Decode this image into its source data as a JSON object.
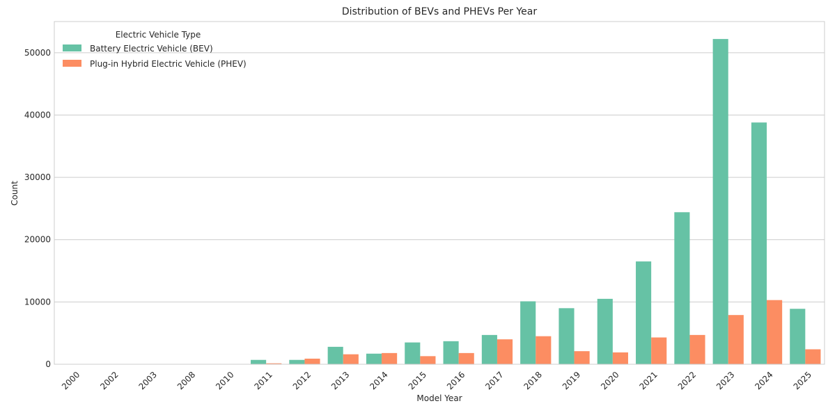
{
  "chart_data": {
    "type": "bar",
    "title": "Distribution of BEVs and PHEVs Per Year",
    "xlabel": "Model Year",
    "ylabel": "Count",
    "ylim": [
      0,
      55000
    ],
    "yticks": [
      0,
      10000,
      20000,
      30000,
      40000,
      50000
    ],
    "grid": true,
    "legend": {
      "title": "Electric Vehicle Type",
      "placement": "top-left"
    },
    "categories": [
      "2000",
      "2002",
      "2003",
      "2008",
      "2010",
      "2011",
      "2012",
      "2013",
      "2014",
      "2015",
      "2016",
      "2017",
      "2018",
      "2019",
      "2020",
      "2021",
      "2022",
      "2023",
      "2024",
      "2025"
    ],
    "series": [
      {
        "name": "Battery Electric Vehicle (BEV)",
        "color": "#66c2a5",
        "values": [
          10,
          10,
          10,
          10,
          10,
          700,
          700,
          2800,
          1700,
          3500,
          3700,
          4700,
          10100,
          9000,
          10500,
          16500,
          24400,
          52200,
          38800,
          8900
        ]
      },
      {
        "name": "Plug-in Hybrid Electric Vehicle (PHEV)",
        "color": "#fc8d62",
        "values": [
          0,
          0,
          0,
          0,
          0,
          150,
          900,
          1600,
          1800,
          1300,
          1800,
          4000,
          4500,
          2100,
          1900,
          4300,
          4700,
          7900,
          10300,
          2400
        ]
      }
    ]
  }
}
